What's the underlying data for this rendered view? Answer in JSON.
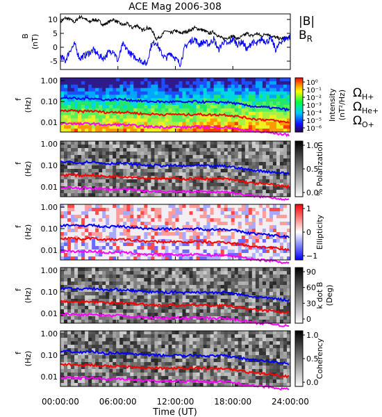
{
  "chart_data": [
    {
      "type": "line",
      "title": "ACE Mag 2006-308",
      "ylabel": "B",
      "yunit": "(nT)",
      "ylim": [
        -8,
        12
      ],
      "yticks": [
        -5,
        0,
        5,
        10
      ],
      "xlim": [
        0,
        24
      ],
      "legend_placement": "right",
      "series": [
        {
          "name": "|B|",
          "color": "#000000",
          "x": [
            0,
            0.5,
            1,
            1.5,
            2,
            2.5,
            3,
            3.5,
            4,
            4.5,
            5,
            5.5,
            6,
            6.5,
            7,
            7.5,
            8,
            8.5,
            9,
            9.5,
            10,
            10.5,
            11,
            11.5,
            12,
            12.5,
            13,
            13.5,
            14,
            14.5,
            15,
            15.5,
            16,
            16.5,
            17,
            17.5,
            18,
            18.5,
            19,
            19.5,
            20,
            20.5,
            21,
            21.5,
            22,
            22.5,
            23,
            23.5,
            24
          ],
          "values": [
            9,
            10.5,
            10,
            9,
            11,
            10.5,
            9,
            10,
            9.5,
            8,
            9,
            10,
            9,
            8,
            8.5,
            7,
            8,
            6,
            7,
            6.5,
            3,
            4,
            6,
            5,
            6,
            5,
            5.5,
            6,
            7,
            6.5,
            6,
            5,
            5.5,
            4,
            3,
            3.5,
            4,
            3,
            4,
            5,
            4,
            5,
            4,
            5,
            4,
            3.5,
            3,
            3.5,
            3
          ]
        },
        {
          "name": "B",
          "subscript": "R",
          "color": "#0000ff",
          "x": [
            0,
            0.5,
            1,
            1.5,
            2,
            2.5,
            3,
            3.5,
            4,
            4.5,
            5,
            5.5,
            6,
            6.5,
            7,
            7.5,
            8,
            8.5,
            9,
            9.5,
            10,
            10.5,
            11,
            11.5,
            12,
            12.5,
            13,
            13.5,
            14,
            14.5,
            15,
            15.5,
            16,
            16.5,
            17,
            17.5,
            18,
            18.5,
            19,
            19.5,
            20,
            20.5,
            21,
            21.5,
            22,
            22.5,
            23,
            23.5,
            24
          ],
          "values": [
            -3,
            -5,
            -1,
            1,
            -4,
            -3,
            -2,
            -1,
            -3,
            -4,
            -2,
            -1,
            -5,
            1,
            -1,
            -3,
            -4,
            -5,
            -6,
            1,
            2,
            -2,
            -4,
            -2,
            -4,
            -6,
            0,
            2,
            3,
            1,
            2,
            1,
            3,
            -1,
            2,
            1,
            3,
            1,
            2,
            -1,
            2,
            1,
            3,
            2,
            3,
            -1,
            2,
            3,
            4
          ]
        }
      ]
    },
    {
      "type": "heatmap",
      "ylabel": "f",
      "yunit": "(Hz)",
      "yscale": "log",
      "yticks": [
        "1.00",
        "0.10",
        "0.01"
      ],
      "xlim": [
        0,
        24
      ],
      "colorbar": {
        "label": "Intensity",
        "unit": "(nT²/Hz)",
        "ticks": [
          "10⁰",
          "10⁻¹",
          "10⁻²",
          "10⁻³",
          "10⁻⁴",
          "10⁻⁵",
          "10⁻⁶"
        ],
        "colormap": "rainbow"
      },
      "overlay_legend": [
        "ΩH+",
        "ΩHe+",
        "ΩO+"
      ]
    },
    {
      "type": "heatmap",
      "ylabel": "f",
      "yunit": "(Hz)",
      "yscale": "log",
      "yticks": [
        "1.00",
        "0.10",
        "0.01"
      ],
      "xlim": [
        0,
        24
      ],
      "colorbar": {
        "label": "% Polarization",
        "ticks": [
          "1.0",
          "0.5",
          "0.0"
        ],
        "colormap": "grayscale"
      }
    },
    {
      "type": "heatmap",
      "ylabel": "f",
      "yunit": "(Hz)",
      "yscale": "log",
      "yticks": [
        "1.00",
        "0.10",
        "0.01"
      ],
      "xlim": [
        0,
        24
      ],
      "colorbar": {
        "label": "Ellipticity",
        "ticks": [
          "1",
          "0",
          "−1"
        ],
        "colormap": "blue-white-red"
      }
    },
    {
      "type": "heatmap",
      "ylabel": "f",
      "yunit": "(Hz)",
      "yscale": "log",
      "yticks": [
        "1.00",
        "0.10",
        "0.01"
      ],
      "xlim": [
        0,
        24
      ],
      "colorbar": {
        "label": "k dot B",
        "unit": "(Deg)",
        "ticks": [
          "90",
          "60",
          "30",
          "0"
        ],
        "colormap": "grayscale"
      }
    },
    {
      "type": "heatmap",
      "ylabel": "f",
      "yunit": "(Hz)",
      "yscale": "log",
      "yticks": [
        "1.00",
        "0.10",
        "0.01"
      ],
      "xlim": [
        0,
        24
      ],
      "colorbar": {
        "label": "Coherency",
        "ticks": [
          "1.0",
          "0.5",
          "0.0"
        ],
        "colormap": "grayscale"
      }
    }
  ],
  "cyclotron_lines": [
    {
      "name": "ΩH+",
      "color": "#0000ff",
      "x": [
        0,
        1,
        2,
        3,
        4,
        5,
        6,
        7,
        8,
        9,
        10,
        11,
        12,
        13,
        14,
        15,
        16,
        17,
        18,
        19,
        20,
        21,
        22,
        23,
        24
      ],
      "f": [
        0.14,
        0.15,
        0.13,
        0.15,
        0.13,
        0.12,
        0.13,
        0.12,
        0.11,
        0.1,
        0.1,
        0.095,
        0.1,
        0.09,
        0.1,
        0.095,
        0.09,
        0.095,
        0.085,
        0.07,
        0.06,
        0.055,
        0.05,
        0.045,
        0.04
      ]
    },
    {
      "name": "ΩHe+",
      "color": "#ff0000",
      "x": [
        0,
        1,
        2,
        3,
        4,
        5,
        6,
        7,
        8,
        9,
        10,
        11,
        12,
        13,
        14,
        15,
        16,
        17,
        18,
        19,
        20,
        21,
        22,
        23,
        24
      ],
      "f": [
        0.035,
        0.037,
        0.033,
        0.036,
        0.033,
        0.03,
        0.032,
        0.03,
        0.028,
        0.025,
        0.025,
        0.024,
        0.025,
        0.023,
        0.025,
        0.024,
        0.023,
        0.024,
        0.021,
        0.018,
        0.015,
        0.014,
        0.013,
        0.011,
        0.01
      ]
    },
    {
      "name": "ΩO+",
      "color": "#ff00ff",
      "x": [
        0,
        1,
        2,
        3,
        4,
        5,
        6,
        7,
        8,
        9,
        10,
        11,
        12,
        13,
        14,
        15,
        16,
        17,
        18,
        19,
        20,
        21,
        22,
        23,
        24
      ],
      "f": [
        0.0088,
        0.0093,
        0.0083,
        0.009,
        0.0083,
        0.0075,
        0.008,
        0.0075,
        0.007,
        0.0063,
        0.0063,
        0.006,
        0.0063,
        0.0058,
        0.0063,
        0.006,
        0.0058,
        0.006,
        0.0053,
        0.0045,
        0.0038,
        0.0035,
        0.0033,
        0.0028,
        0.0025
      ]
    }
  ],
  "x_axis": {
    "label": "Time (UT)",
    "ticks": [
      0,
      6,
      12,
      18,
      24
    ],
    "tick_labels": [
      "00:00:00",
      "06:00:00",
      "12:00:00",
      "18:00:00",
      "24:00:00"
    ]
  }
}
